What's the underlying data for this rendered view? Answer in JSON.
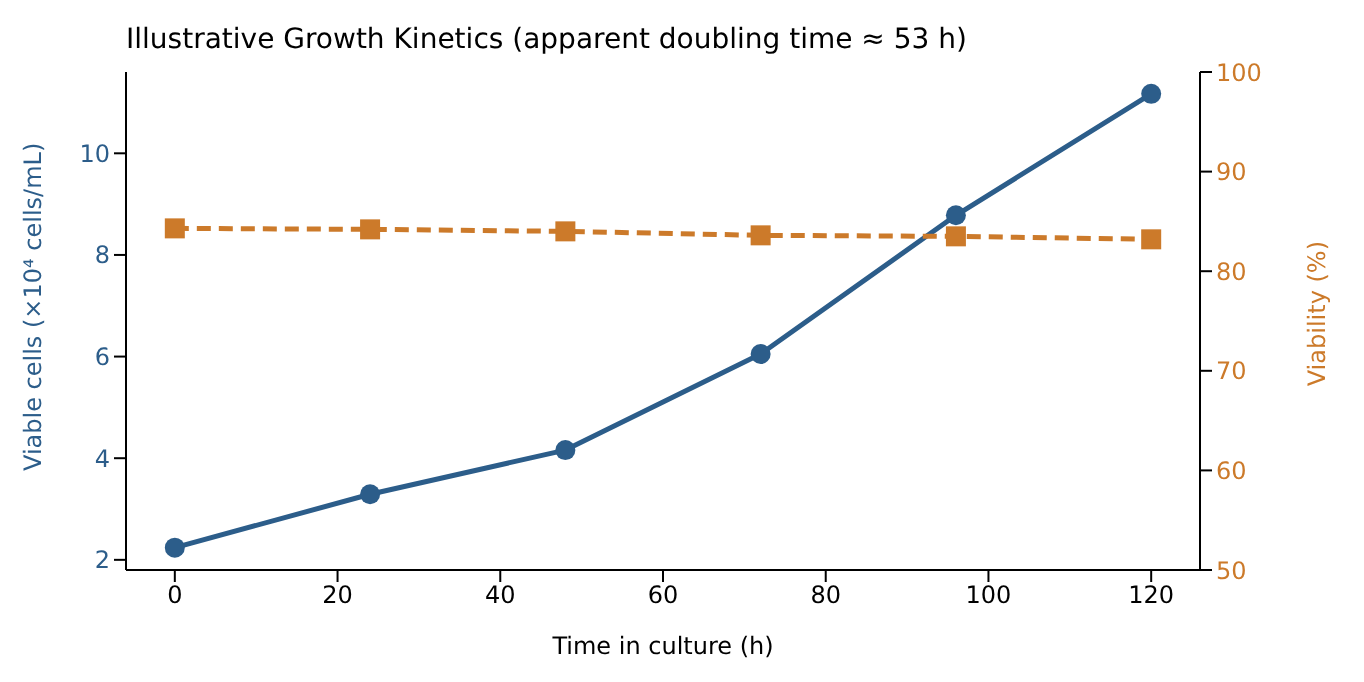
{
  "chart_data": {
    "type": "line",
    "title": "Illustrative Growth Kinetics (apparent doubling time ≈ 53 h)",
    "xlabel": "Time in culture (h)",
    "ylabel": "Viable cells (×10⁴ cells/mL)",
    "y2label": "Viability (%)",
    "x": [
      0,
      24,
      48,
      72,
      96,
      120
    ],
    "xlim": [
      -6,
      126
    ],
    "xticks": [
      0,
      20,
      40,
      60,
      80,
      100,
      120
    ],
    "ylim": [
      1.8,
      11.6
    ],
    "yticks": [
      2,
      4,
      6,
      8,
      10
    ],
    "y2lim": [
      50,
      100
    ],
    "y2ticks": [
      50,
      60,
      70,
      80,
      90,
      100
    ],
    "grid": false,
    "legend": false,
    "series": [
      {
        "color": "#2c5d8a",
        "values": [
          2.24,
          3.29,
          4.16,
          6.05,
          8.78,
          11.17
        ],
        "marker": "circle",
        "line_style": "solid"
      },
      {
        "axis": "y2",
        "color": "#cc7a2a",
        "values": [
          84.3,
          84.2,
          84.0,
          83.6,
          83.5,
          83.2
        ],
        "marker": "square",
        "line_style": "dashed"
      }
    ]
  }
}
